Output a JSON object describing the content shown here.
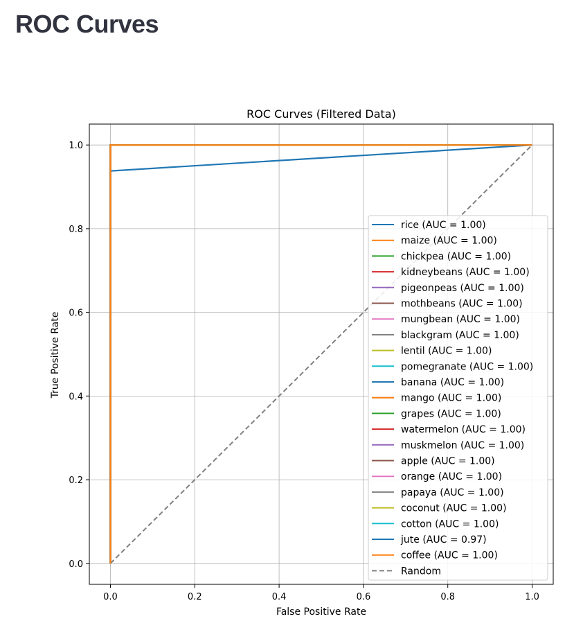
{
  "page": {
    "heading": "ROC Curves"
  },
  "chart_data": {
    "type": "line",
    "title": "ROC Curves (Filtered Data)",
    "xlabel": "False Positive Rate",
    "ylabel": "True Positive Rate",
    "xlim": [
      -0.05,
      1.05
    ],
    "ylim": [
      -0.05,
      1.05
    ],
    "xticks": [
      "0.0",
      "0.2",
      "0.4",
      "0.6",
      "0.8",
      "1.0"
    ],
    "yticks": [
      "0.0",
      "0.2",
      "0.4",
      "0.6",
      "0.8",
      "1.0"
    ],
    "grid": true,
    "legend_position": "lower-right",
    "series": [
      {
        "name": "rice (AUC = 1.00)",
        "color": "#1f77b4",
        "x": [
          0,
          0,
          1
        ],
        "y": [
          0,
          1,
          1
        ]
      },
      {
        "name": "maize (AUC = 1.00)",
        "color": "#ff7f0e",
        "x": [
          0,
          0,
          1
        ],
        "y": [
          0,
          1,
          1
        ]
      },
      {
        "name": "chickpea (AUC = 1.00)",
        "color": "#2ca02c",
        "x": [
          0,
          0,
          1
        ],
        "y": [
          0,
          1,
          1
        ]
      },
      {
        "name": "kidneybeans (AUC = 1.00)",
        "color": "#d62728",
        "x": [
          0,
          0,
          1
        ],
        "y": [
          0,
          1,
          1
        ]
      },
      {
        "name": "pigeonpeas (AUC = 1.00)",
        "color": "#9467bd",
        "x": [
          0,
          0,
          1
        ],
        "y": [
          0,
          1,
          1
        ]
      },
      {
        "name": "mothbeans (AUC = 1.00)",
        "color": "#8c564b",
        "x": [
          0,
          0,
          1
        ],
        "y": [
          0,
          1,
          1
        ]
      },
      {
        "name": "mungbean (AUC = 1.00)",
        "color": "#e377c2",
        "x": [
          0,
          0,
          1
        ],
        "y": [
          0,
          1,
          1
        ]
      },
      {
        "name": "blackgram (AUC = 1.00)",
        "color": "#7f7f7f",
        "x": [
          0,
          0,
          1
        ],
        "y": [
          0,
          1,
          1
        ]
      },
      {
        "name": "lentil (AUC = 1.00)",
        "color": "#bcbd22",
        "x": [
          0,
          0,
          1
        ],
        "y": [
          0,
          1,
          1
        ]
      },
      {
        "name": "pomegranate (AUC = 1.00)",
        "color": "#17becf",
        "x": [
          0,
          0,
          1
        ],
        "y": [
          0,
          1,
          1
        ]
      },
      {
        "name": "banana (AUC = 1.00)",
        "color": "#1f77b4",
        "x": [
          0,
          0,
          1
        ],
        "y": [
          0,
          1,
          1
        ]
      },
      {
        "name": "mango (AUC = 1.00)",
        "color": "#ff7f0e",
        "x": [
          0,
          0,
          1
        ],
        "y": [
          0,
          1,
          1
        ]
      },
      {
        "name": "grapes (AUC = 1.00)",
        "color": "#2ca02c",
        "x": [
          0,
          0,
          1
        ],
        "y": [
          0,
          1,
          1
        ]
      },
      {
        "name": "watermelon (AUC = 1.00)",
        "color": "#d62728",
        "x": [
          0,
          0,
          1
        ],
        "y": [
          0,
          1,
          1
        ]
      },
      {
        "name": "muskmelon (AUC = 1.00)",
        "color": "#9467bd",
        "x": [
          0,
          0,
          1
        ],
        "y": [
          0,
          1,
          1
        ]
      },
      {
        "name": "apple (AUC = 1.00)",
        "color": "#8c564b",
        "x": [
          0,
          0,
          1
        ],
        "y": [
          0,
          1,
          1
        ]
      },
      {
        "name": "orange (AUC = 1.00)",
        "color": "#e377c2",
        "x": [
          0,
          0,
          1
        ],
        "y": [
          0,
          1,
          1
        ]
      },
      {
        "name": "papaya (AUC = 1.00)",
        "color": "#7f7f7f",
        "x": [
          0,
          0,
          1
        ],
        "y": [
          0,
          1,
          1
        ]
      },
      {
        "name": "coconut (AUC = 1.00)",
        "color": "#bcbd22",
        "x": [
          0,
          0,
          1
        ],
        "y": [
          0,
          1,
          1
        ]
      },
      {
        "name": "cotton (AUC = 1.00)",
        "color": "#17becf",
        "x": [
          0,
          0,
          1
        ],
        "y": [
          0,
          1,
          1
        ]
      },
      {
        "name": "jute (AUC = 0.97)",
        "color": "#1f77b4",
        "x": [
          0,
          0,
          1
        ],
        "y": [
          0,
          0.938,
          1
        ]
      },
      {
        "name": "coffee (AUC = 1.00)",
        "color": "#ff7f0e",
        "x": [
          0,
          0,
          1
        ],
        "y": [
          0,
          1,
          1
        ]
      },
      {
        "name": "Random",
        "color": "#808080",
        "dashed": true,
        "x": [
          0,
          1
        ],
        "y": [
          0,
          1
        ]
      }
    ]
  }
}
